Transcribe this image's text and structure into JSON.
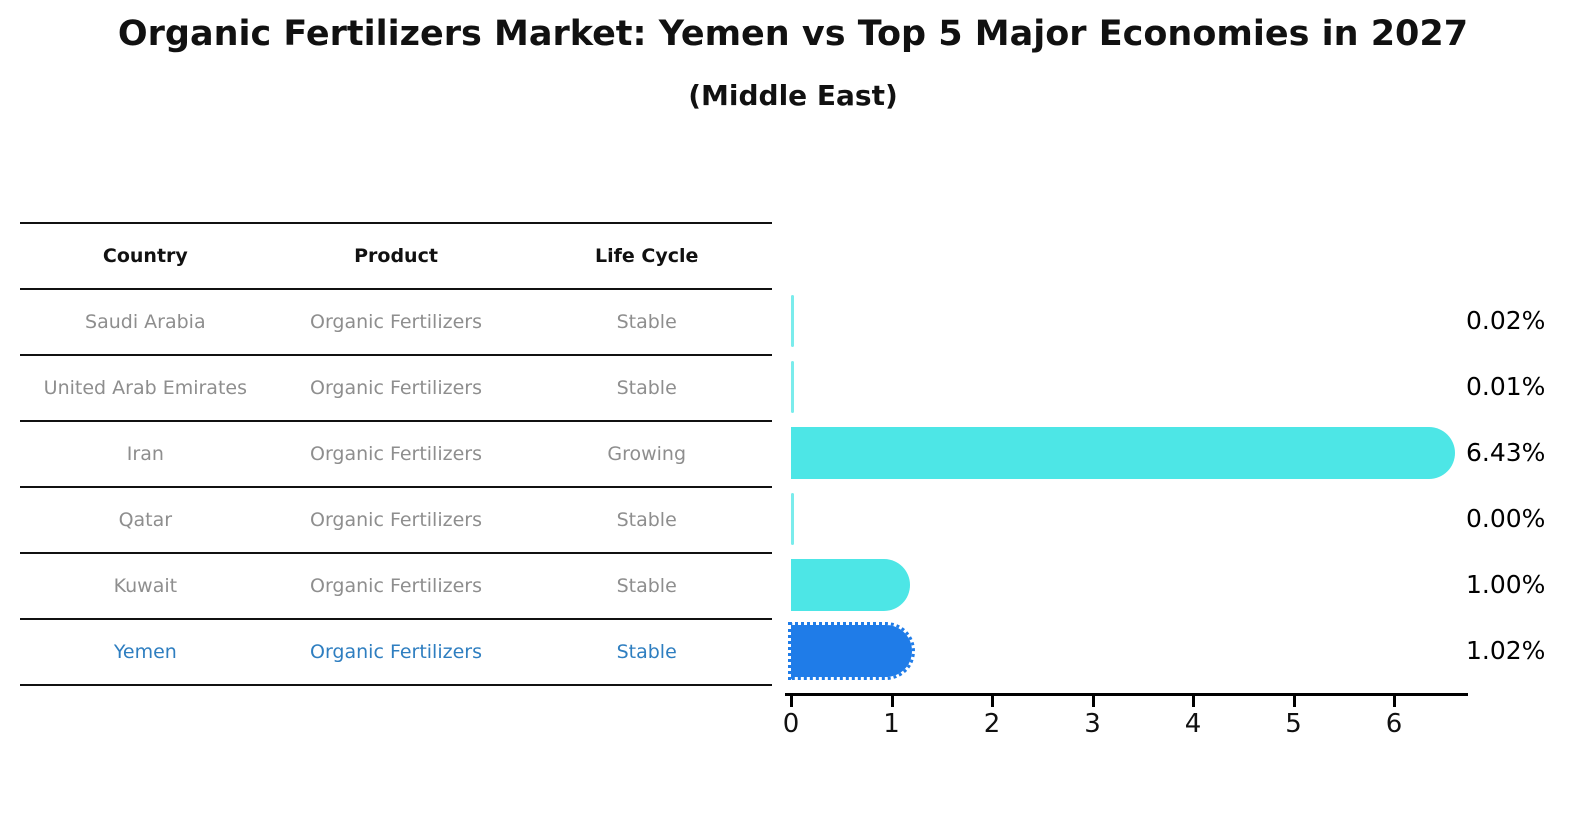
{
  "title": "Organic Fertilizers Market: Yemen vs Top 5 Major Economies in 2027",
  "subtitle": "(Middle East)",
  "table": {
    "headers": [
      "Country",
      "Product",
      "Life Cycle"
    ],
    "rows": [
      {
        "country": "Saudi Arabia",
        "product": "Organic Fertilizers",
        "life_cycle": "Stable",
        "highlight": false
      },
      {
        "country": "United Arab Emirates",
        "product": "Organic Fertilizers",
        "life_cycle": "Stable",
        "highlight": false
      },
      {
        "country": "Iran",
        "product": "Organic Fertilizers",
        "life_cycle": "Growing",
        "highlight": false
      },
      {
        "country": "Qatar",
        "product": "Organic Fertilizers",
        "life_cycle": "Stable",
        "highlight": false
      },
      {
        "country": "Kuwait",
        "product": "Organic Fertilizers",
        "life_cycle": "Stable",
        "highlight": false
      },
      {
        "country": "Yemen",
        "product": "Organic Fertilizers",
        "life_cycle": "Stable",
        "highlight": true
      }
    ]
  },
  "chart_data": {
    "type": "bar",
    "orientation": "horizontal",
    "title": "Organic Fertilizers Market: Yemen vs Top 5 Major Economies in 2027",
    "subtitle": "(Middle East)",
    "categories": [
      "Saudi Arabia",
      "United Arab Emirates",
      "Iran",
      "Qatar",
      "Kuwait",
      "Yemen"
    ],
    "values": [
      0.02,
      0.01,
      6.43,
      0.0,
      1.0,
      1.02
    ],
    "labels": [
      "0.02%",
      "0.01%",
      "6.43%",
      "0.00%",
      "1.00%",
      "1.02%"
    ],
    "xticks": [
      0,
      1,
      2,
      3,
      4,
      5,
      6
    ],
    "xlim": [
      0,
      6.7
    ],
    "grid": false,
    "legend": false,
    "highlight_index": 5,
    "colors": {
      "bar": "#4de6e6",
      "highlight_bar": "#1f7ce8",
      "highlight_text": "#2e7ec0",
      "row_text": "#8e8e8e",
      "header_text": "#111111",
      "axis": "#000000",
      "value_label": "#000000"
    }
  }
}
